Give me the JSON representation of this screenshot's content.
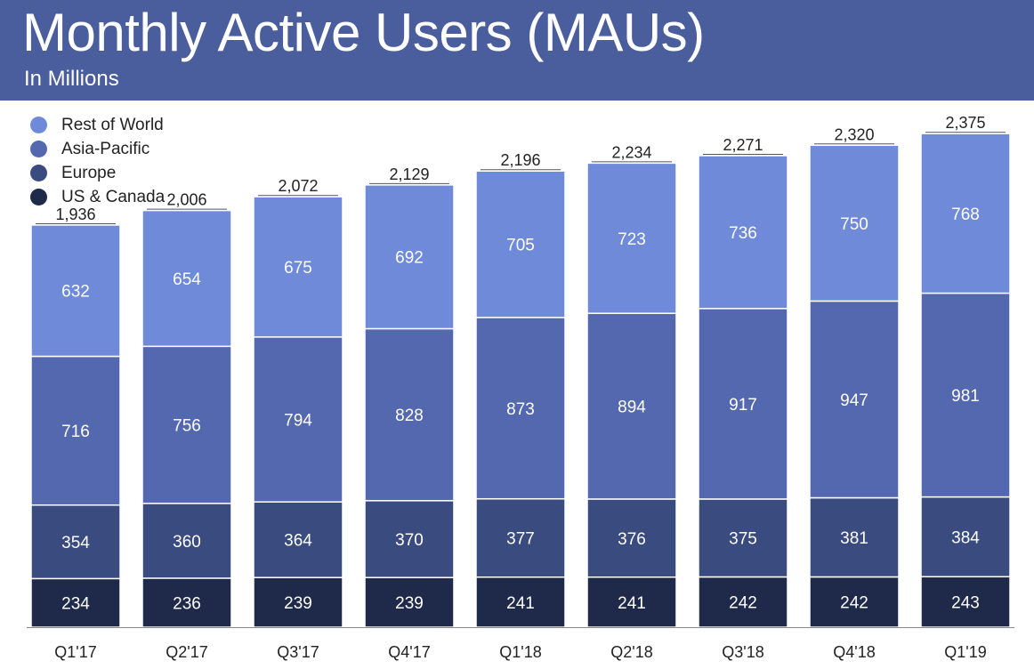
{
  "header": {
    "title": "Monthly Active Users (MAUs)",
    "subtitle": "In Millions",
    "background_color": "#4a5e9d"
  },
  "chart_data": {
    "type": "bar",
    "stacked": true,
    "categories": [
      "Q1'17",
      "Q2'17",
      "Q3'17",
      "Q4'17",
      "Q1'18",
      "Q2'18",
      "Q3'18",
      "Q4'18",
      "Q1'19"
    ],
    "series": [
      {
        "name": "US & Canada",
        "color": "#1f2a4a",
        "values": [
          234,
          236,
          239,
          239,
          241,
          241,
          242,
          242,
          243
        ]
      },
      {
        "name": "Europe",
        "color": "#3a4b80",
        "values": [
          354,
          360,
          364,
          370,
          377,
          376,
          375,
          381,
          384
        ]
      },
      {
        "name": "Asia-Pacific",
        "color": "#5468af",
        "values": [
          716,
          756,
          794,
          828,
          873,
          894,
          917,
          947,
          981
        ]
      },
      {
        "name": "Rest of World",
        "color": "#6e8ad9",
        "values": [
          632,
          654,
          675,
          692,
          705,
          723,
          736,
          750,
          768
        ]
      }
    ],
    "totals": [
      "1,936",
      "2,006",
      "2,072",
      "2,129",
      "2,196",
      "2,234",
      "2,271",
      "2,320",
      "2,375"
    ],
    "legend_order": [
      "Rest of World",
      "Asia-Pacific",
      "Europe",
      "US & Canada"
    ],
    "legend_position": "top-left",
    "xlabel": "",
    "ylabel": "",
    "grid": false
  }
}
